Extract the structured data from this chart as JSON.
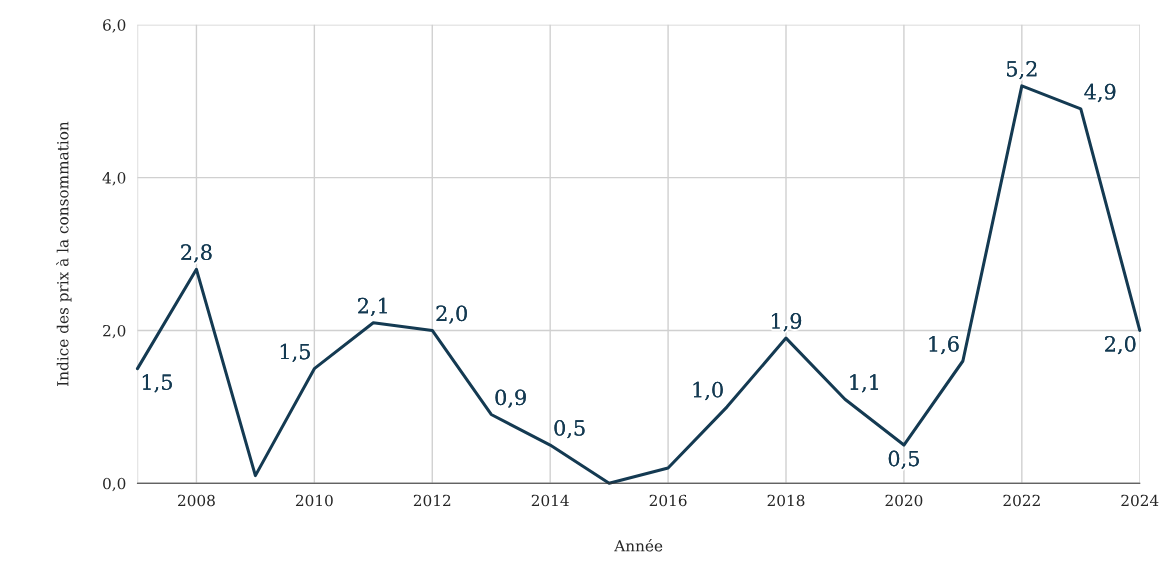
{
  "chart_data": {
    "type": "line",
    "xlabel": "Année",
    "ylabel": "Indice des prix à la consommation",
    "x": [
      2007,
      2008,
      2009,
      2010,
      2011,
      2012,
      2013,
      2014,
      2015,
      2016,
      2017,
      2018,
      2019,
      2020,
      2021,
      2022,
      2023,
      2024
    ],
    "series": [
      {
        "color": "#143a52",
        "values": [
          1.5,
          2.8,
          0.1,
          1.5,
          2.1,
          2.0,
          0.9,
          0.5,
          0.0,
          0.2,
          1.0,
          1.9,
          1.1,
          0.5,
          1.6,
          5.2,
          4.9,
          2.0
        ],
        "value_labels": [
          "1,5",
          "2,8",
          null,
          "1,5",
          "2,1",
          "2,0",
          "0,9",
          "0,5",
          null,
          null,
          "1,0",
          "1,9",
          "1,1",
          "0,5",
          "1,6",
          "5,2",
          "4,9",
          "2,0"
        ]
      }
    ],
    "xlim": [
      2007,
      2024
    ],
    "xticks": [
      2008,
      2010,
      2012,
      2014,
      2016,
      2018,
      2020,
      2022,
      2024
    ],
    "ylim": [
      0,
      6
    ],
    "yticks": [
      {
        "value": 0,
        "label": "0,0"
      },
      {
        "value": 2,
        "label": "2,0"
      },
      {
        "value": 4,
        "label": "4,0"
      },
      {
        "value": 6,
        "label": "6,0"
      }
    ],
    "grid": true,
    "marker": "none",
    "line_style": "solid"
  }
}
